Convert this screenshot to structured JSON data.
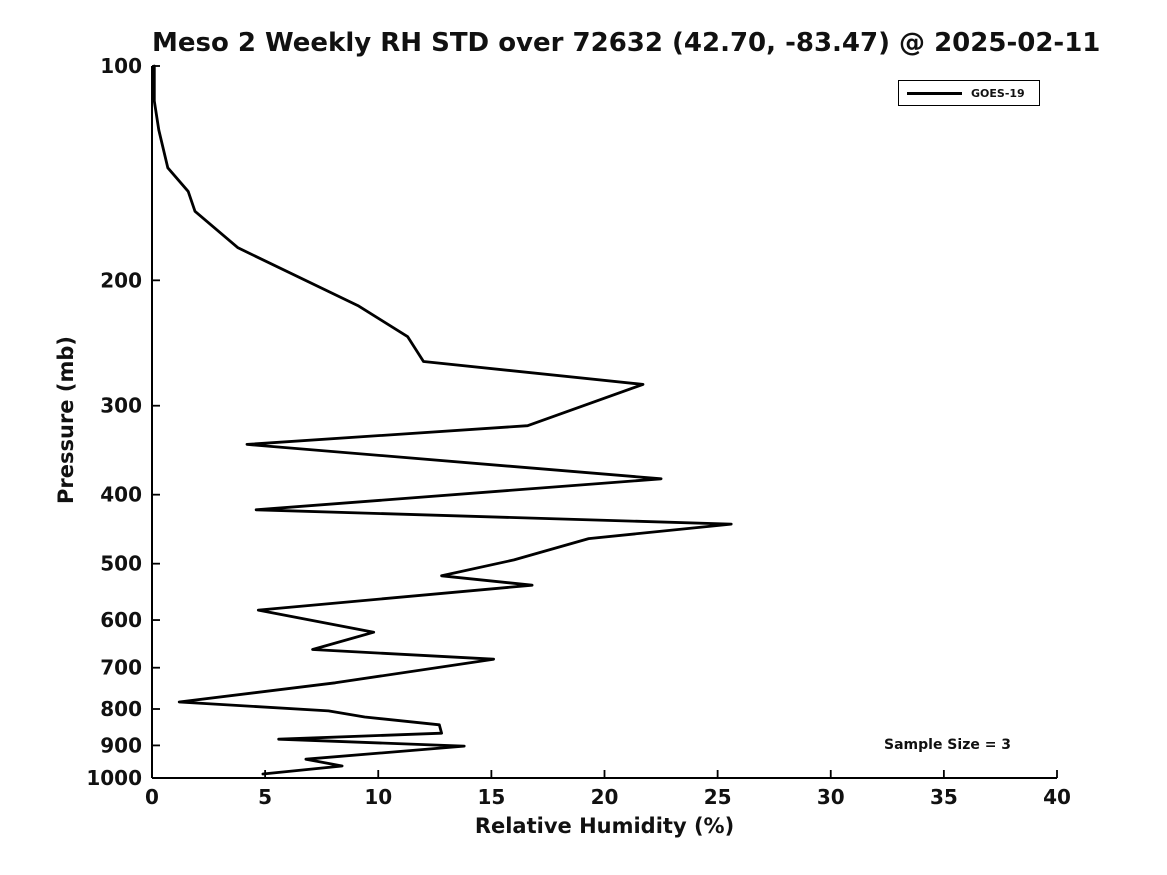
{
  "title": "Meso 2 Weekly RH STD over 72632 (42.70, -83.47) @ 2025-02-11",
  "colors": {
    "line": "#000000",
    "axis": "#000000",
    "text": "#111111",
    "background": "#ffffff"
  },
  "legend": {
    "entries": [
      {
        "label": "GOES-19",
        "color": "#000000"
      }
    ]
  },
  "chart_data": {
    "type": "line",
    "title": "Meso 2 Weekly RH STD over 72632 (42.70, -83.47) @ 2025-02-11",
    "xlabel": "Relative Humidity (%)",
    "ylabel": "Pressure (mb)",
    "xlim": [
      0,
      40
    ],
    "xticks": [
      0,
      5,
      10,
      15,
      20,
      25,
      30,
      35,
      40
    ],
    "yscale": "log",
    "ylim": [
      100,
      1000
    ],
    "y_increases_downward": true,
    "yticks": [
      100,
      200,
      300,
      400,
      500,
      600,
      700,
      800,
      900,
      1000
    ],
    "grid": false,
    "legend_position": "upper right",
    "annotations": [
      {
        "text": "Sample Size = 3",
        "x": 35,
        "y": 900
      }
    ],
    "series": [
      {
        "name": "GOES-19",
        "color": "#000000",
        "points_rh_pressure": [
          [
            0.1,
            100
          ],
          [
            0.1,
            112
          ],
          [
            0.3,
            123
          ],
          [
            0.7,
            139
          ],
          [
            1.6,
            150
          ],
          [
            1.9,
            160
          ],
          [
            3.8,
            180
          ],
          [
            9.1,
            217
          ],
          [
            11.3,
            240
          ],
          [
            12.0,
            260
          ],
          [
            21.7,
            280
          ],
          [
            16.6,
            320
          ],
          [
            4.2,
            340
          ],
          [
            22.5,
            380
          ],
          [
            4.6,
            420
          ],
          [
            25.6,
            440
          ],
          [
            19.3,
            461
          ],
          [
            16.0,
            494
          ],
          [
            12.8,
            520
          ],
          [
            16.8,
            536
          ],
          [
            4.7,
            581
          ],
          [
            9.8,
            624
          ],
          [
            7.1,
            660
          ],
          [
            15.1,
            681
          ],
          [
            8.1,
            735
          ],
          [
            1.2,
            782
          ],
          [
            7.8,
            805
          ],
          [
            9.4,
            821
          ],
          [
            12.7,
            842
          ],
          [
            12.8,
            865
          ],
          [
            5.6,
            882
          ],
          [
            13.8,
            902
          ],
          [
            6.8,
            941
          ],
          [
            8.4,
            962
          ],
          [
            4.9,
            987
          ]
        ]
      }
    ]
  }
}
